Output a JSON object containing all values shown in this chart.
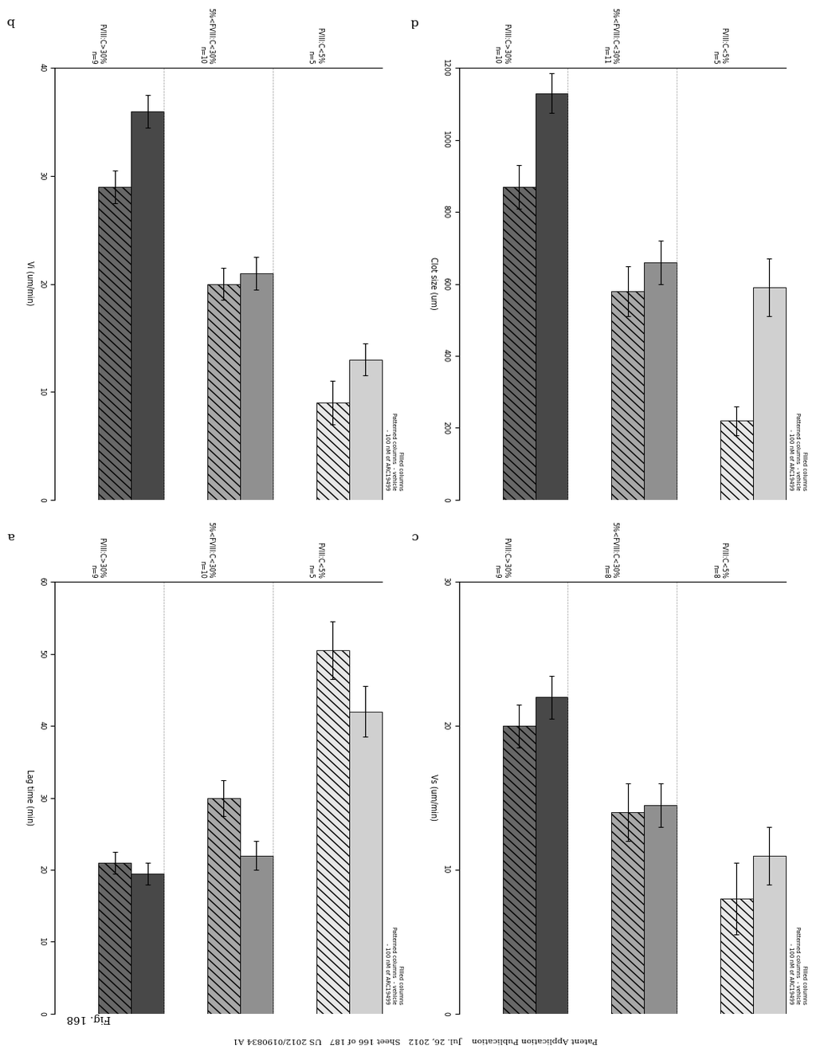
{
  "header": "Patent Application Publication    Jul. 26, 2012   Sheet 166 of 187   US 2012/0190834 A1",
  "fig_label": "Fig. 168",
  "subplots": {
    "a": {
      "label": "a",
      "xlabel": "Lag time (min)",
      "xlim": [
        0,
        60
      ],
      "xticks": [
        0,
        10,
        20,
        30,
        40,
        50,
        60
      ],
      "groups": [
        {
          "name": "FVIII:C<5%\nn=5",
          "vehicle_val": 50.5,
          "vehicle_err": 4.0,
          "arc_val": 42.0,
          "arc_err": 3.5,
          "shade": "light"
        },
        {
          "name": "5%<FVIII:C<30%\nn=10",
          "vehicle_val": 30.0,
          "vehicle_err": 2.5,
          "arc_val": 22.0,
          "arc_err": 2.0,
          "shade": "medium"
        },
        {
          "name": "FVIII:C>30%\nn=9",
          "vehicle_val": 21.0,
          "vehicle_err": 1.5,
          "arc_val": 19.5,
          "arc_err": 1.5,
          "shade": "dark"
        }
      ]
    },
    "b": {
      "label": "b",
      "xlabel": "Vi (um/min)",
      "xlim": [
        0,
        40
      ],
      "xticks": [
        0,
        10,
        20,
        30,
        40
      ],
      "groups": [
        {
          "name": "FVIII:C<5%\nn=5",
          "vehicle_val": 9.0,
          "vehicle_err": 2.0,
          "arc_val": 13.0,
          "arc_err": 1.5,
          "shade": "light"
        },
        {
          "name": "5%<FVIII:C<30%\nn=10",
          "vehicle_val": 20.0,
          "vehicle_err": 1.5,
          "arc_val": 21.0,
          "arc_err": 1.5,
          "shade": "medium"
        },
        {
          "name": "FVIII:C>30%\nn=9",
          "vehicle_val": 29.0,
          "vehicle_err": 1.5,
          "arc_val": 36.0,
          "arc_err": 1.5,
          "shade": "dark"
        }
      ]
    },
    "c": {
      "label": "c",
      "xlabel": "Vs (um/min)",
      "xlim": [
        0,
        30
      ],
      "xticks": [
        0,
        10,
        20,
        30
      ],
      "groups": [
        {
          "name": "FVIII:C<5%\nn=8",
          "vehicle_val": 8.0,
          "vehicle_err": 2.5,
          "arc_val": 11.0,
          "arc_err": 2.0,
          "shade": "light"
        },
        {
          "name": "5%<FVIII:C<30%\nn=8",
          "vehicle_val": 14.0,
          "vehicle_err": 2.0,
          "arc_val": 14.5,
          "arc_err": 1.5,
          "shade": "medium"
        },
        {
          "name": "FVIII:C>30%\nn=9",
          "vehicle_val": 20.0,
          "vehicle_err": 1.5,
          "arc_val": 22.0,
          "arc_err": 1.5,
          "shade": "dark"
        }
      ]
    },
    "d": {
      "label": "d",
      "xlabel": "Clot size (um)",
      "xlim": [
        0,
        1200
      ],
      "xticks": [
        0,
        200,
        400,
        600,
        800,
        1000,
        1200
      ],
      "groups": [
        {
          "name": "FVIII:C<5%\nn=5",
          "vehicle_val": 220,
          "vehicle_err": 40,
          "arc_val": 590,
          "arc_err": 80,
          "shade": "light"
        },
        {
          "name": "5%<FVIII:C<30%\nn=11",
          "vehicle_val": 580,
          "vehicle_err": 70,
          "arc_val": 660,
          "arc_err": 60,
          "shade": "medium"
        },
        {
          "name": "FVIII:C>30%\nn=10",
          "vehicle_val": 870,
          "vehicle_err": 60,
          "arc_val": 1130,
          "arc_err": 55,
          "shade": "dark"
        }
      ]
    }
  },
  "shade_colors": {
    "light": {
      "vehicle": "#e8e8e8",
      "arc": "#d0d0d0"
    },
    "medium": {
      "vehicle": "#a8a8a8",
      "arc": "#909090"
    },
    "dark": {
      "vehicle": "#686868",
      "arc": "#484848"
    }
  },
  "legend_lines": [
    "Filled columns",
    "Patterned columns  - vehicle",
    "                         - 100 nM of ARC19499"
  ]
}
